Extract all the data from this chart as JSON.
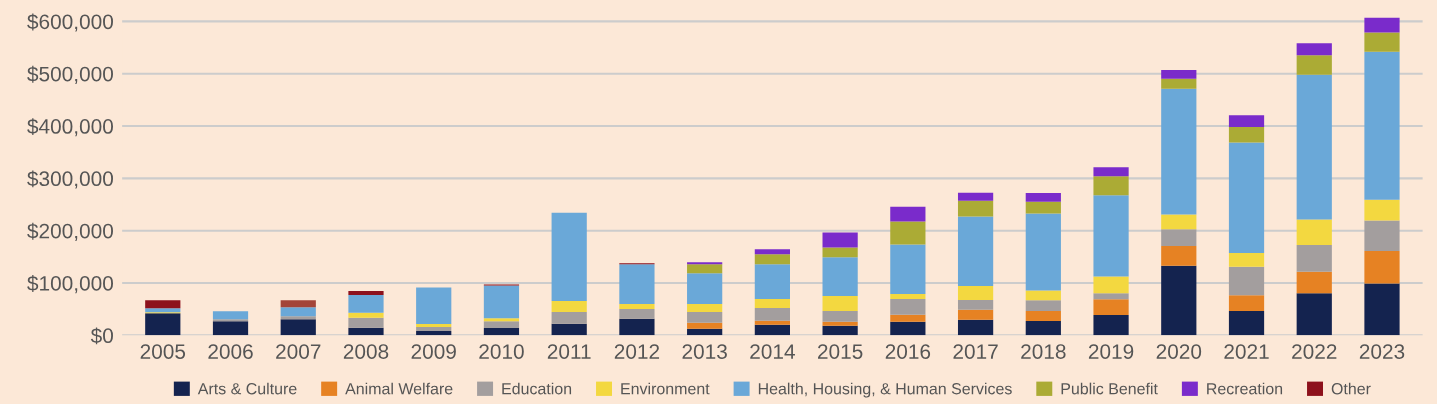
{
  "chart_data": {
    "type": "bar",
    "stacked": true,
    "categories": [
      "2005",
      "2006",
      "2007",
      "2008",
      "2009",
      "2010",
      "2011",
      "2012",
      "2013",
      "2014",
      "2015",
      "2016",
      "2017",
      "2018",
      "2019",
      "2020",
      "2021",
      "2022",
      "2023"
    ],
    "series": [
      {
        "name": "Arts & Culture",
        "color": "#14234f",
        "values": [
          42300,
          27100,
          30900,
          14500,
          8200,
          13900,
          22100,
          31600,
          12600,
          20200,
          18300,
          25900,
          29700,
          27600,
          38900,
          132900,
          46400,
          80300,
          99100
        ]
      },
      {
        "name": "Animal Welfare",
        "color": "#e68223",
        "values": [
          null,
          null,
          null,
          null,
          null,
          null,
          null,
          null,
          11400,
          7600,
          7600,
          13300,
          19000,
          18800,
          30100,
          37600,
          30100,
          41400,
          62100
        ]
      },
      {
        "name": "Education",
        "color": "#a39e9e",
        "values": [
          null,
          3800,
          5700,
          18900,
          7600,
          13200,
          22700,
          18900,
          20800,
          24600,
          20800,
          30300,
          19000,
          20700,
          11300,
          32000,
          54500,
          50800,
          58300
        ]
      },
      {
        "name": "Environment",
        "color": "#f3d840",
        "values": [
          1900,
          null,
          null,
          9500,
          5700,
          5700,
          20800,
          9500,
          15200,
          17100,
          28400,
          9500,
          26500,
          18800,
          32000,
          28200,
          26300,
          48900,
          39500
        ]
      },
      {
        "name": "Health, Housing, & Human Services",
        "color": "#6aa8d8",
        "values": [
          7600,
          15100,
          17000,
          34100,
          70000,
          62500,
          168500,
          75800,
          58700,
          66300,
          73900,
          94800,
          132700,
          146700,
          155500,
          240800,
          211300,
          276500,
          282800
        ]
      },
      {
        "name": "Public Benefit",
        "color": "#abab35",
        "values": [
          null,
          null,
          null,
          null,
          null,
          null,
          null,
          null,
          17100,
          19000,
          19000,
          43600,
          30300,
          22600,
          36400,
          18800,
          29500,
          37600,
          37000
        ]
      },
      {
        "name": "Recreation",
        "color": "#7a2bcb",
        "values": [
          null,
          null,
          null,
          null,
          null,
          null,
          null,
          null,
          3800,
          9500,
          28400,
          28400,
          15200,
          16900,
          16900,
          16900,
          22600,
          22600,
          28200
        ]
      },
      {
        "name": "Other",
        "color": "#8d111c",
        "colors": [
          "#8d111c",
          "#8d111c",
          "#a34539",
          "#8d111c",
          "#8d111c",
          "#8d111c",
          "#8d111c",
          "#8d111c",
          "#8d111c",
          "#8d111c",
          "#8d111c",
          "#8d111c",
          "#8d111c",
          "#8d111c",
          "#8d111c",
          "#8d111c",
          "#8d111c",
          "#8d111c",
          "#8d111c"
        ],
        "values": [
          15100,
          null,
          13200,
          7600,
          null,
          1900,
          null,
          1900,
          null,
          null,
          null,
          null,
          null,
          null,
          null,
          null,
          null,
          null,
          null
        ]
      }
    ],
    "ylim": [
      0,
      610000
    ],
    "yticks": [
      {
        "value": 0,
        "label": "$0"
      },
      {
        "value": 100000,
        "label": "$100,000"
      },
      {
        "value": 200000,
        "label": "$200,000"
      },
      {
        "value": 300000,
        "label": "$300,000"
      },
      {
        "value": 400000,
        "label": "$400,000"
      },
      {
        "value": 500000,
        "label": "$500,000"
      },
      {
        "value": 600000,
        "label": "$600,000"
      }
    ],
    "grid": "y",
    "legend": "bottom"
  }
}
